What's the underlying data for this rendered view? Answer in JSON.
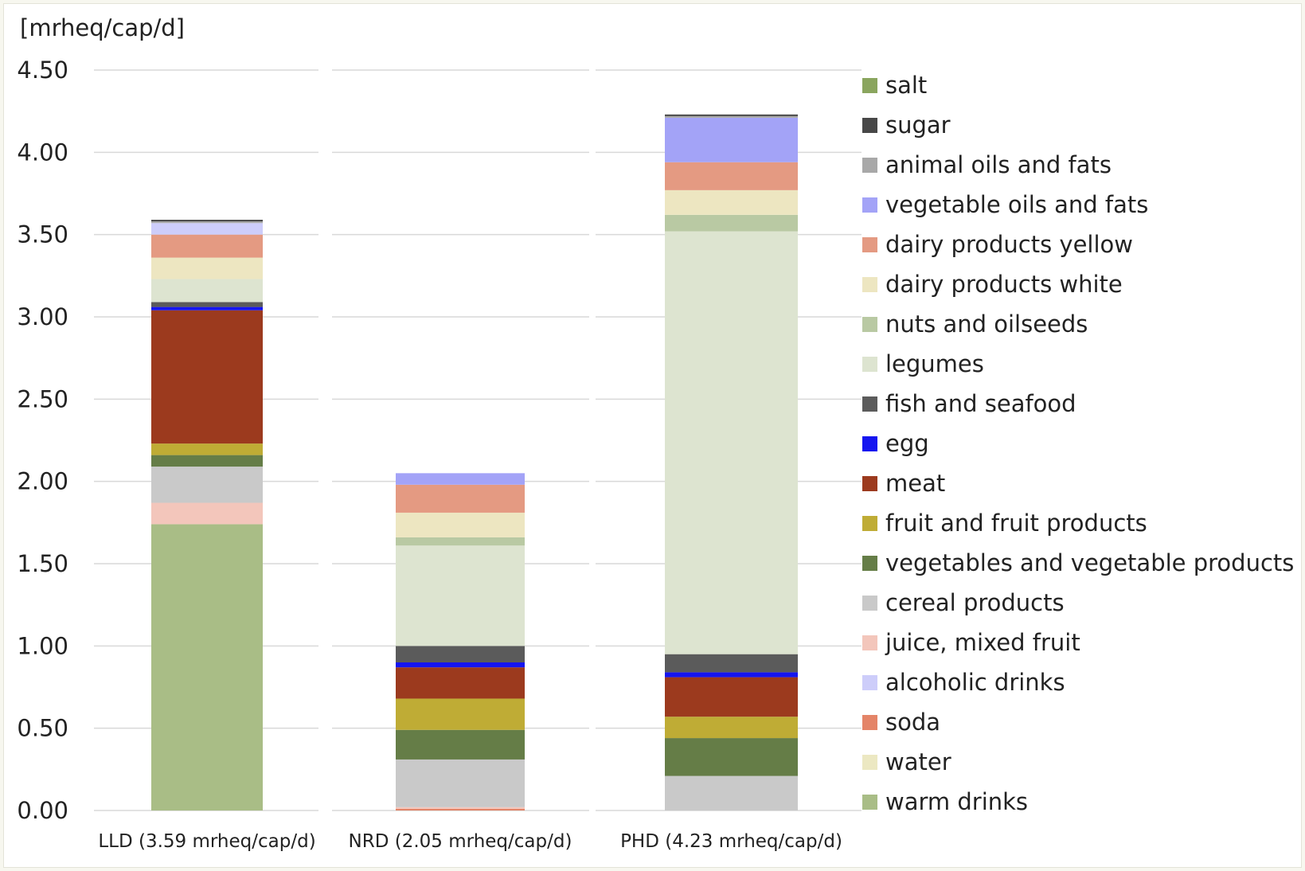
{
  "chart_data": {
    "type": "bar",
    "stacked": true,
    "unit_label": "[mrheq/cap/d]",
    "title": "",
    "xlabel": "",
    "ylabel": "[mrheq/cap/d]",
    "ylim": [
      0,
      4.5
    ],
    "yticks": [
      "0.00",
      "0.50",
      "1.00",
      "1.50",
      "2.00",
      "2.50",
      "3.00",
      "3.50",
      "4.00",
      "4.50"
    ],
    "grid": true,
    "legend_position": "right",
    "categories": [
      "LLD (3.59 mrheq/cap/d)",
      "NRD (2.05 mrheq/cap/d)",
      "PHD (4.23 mrheq/cap/d)"
    ],
    "series": [
      {
        "name": "warm drinks",
        "color": "#a9bd86",
        "values": [
          1.74,
          0.0,
          0.0
        ]
      },
      {
        "name": "water",
        "color": "#ece8c2",
        "values": [
          0.0,
          0.0,
          0.0
        ]
      },
      {
        "name": "soda",
        "color": "#e48468",
        "values": [
          0.0,
          0.01,
          0.0
        ]
      },
      {
        "name": "alcoholic drinks",
        "color": "#cdcdfa",
        "values": [
          0.0,
          0.0,
          0.0
        ]
      },
      {
        "name": "juice, mixed fruit",
        "color": "#f3c6bb",
        "values": [
          0.13,
          0.01,
          0.0
        ]
      },
      {
        "name": "cereal products",
        "color": "#c9c9c9",
        "values": [
          0.22,
          0.29,
          0.21
        ]
      },
      {
        "name": "fruit and fruit products",
        "color": "#bfac35",
        "values": [
          0.0,
          0.0,
          0.0
        ]
      },
      {
        "name": "vegetables and vegetable products",
        "color": "#657d47",
        "values": [
          0.07,
          0.18,
          0.23
        ]
      },
      {
        "name": "fruit and fruit products",
        "color": "#bfac35",
        "values": [
          0.07,
          0.19,
          0.13
        ]
      },
      {
        "name": "meat",
        "color": "#9c3a1e",
        "values": [
          0.81,
          0.19,
          0.24
        ]
      },
      {
        "name": "egg",
        "color": "#1515f0",
        "values": [
          0.02,
          0.03,
          0.03
        ]
      },
      {
        "name": "fish and seafood",
        "color": "#5b5b5b",
        "values": [
          0.03,
          0.1,
          0.11
        ]
      },
      {
        "name": "legumes",
        "color": "#dde4d0",
        "values": [
          0.14,
          0.61,
          2.57
        ]
      },
      {
        "name": "nuts and oilseeds",
        "color": "#b9c9a3",
        "values": [
          0.0,
          0.05,
          0.1
        ]
      },
      {
        "name": "dairy products white",
        "color": "#ede6c1",
        "values": [
          0.13,
          0.15,
          0.15
        ]
      },
      {
        "name": "dairy products yellow",
        "color": "#e49a82",
        "values": [
          0.14,
          0.17,
          0.17
        ]
      },
      {
        "name": "vegetable oils and fats",
        "color": "#a3a3f7",
        "values": [
          0.0,
          0.07,
          0.27
        ]
      },
      {
        "name": "alcoholic drinks",
        "color": "#cdcdfa",
        "values": [
          0.07,
          0.0,
          0.0
        ]
      },
      {
        "name": "animal oils and fats",
        "color": "#a8a8a8",
        "values": [
          0.01,
          0.0,
          0.01
        ]
      },
      {
        "name": "sugar",
        "color": "#474747",
        "values": [
          0.01,
          0.0,
          0.01
        ]
      },
      {
        "name": "salt",
        "color": "#8aa55e",
        "values": [
          0.0,
          0.0,
          0.0
        ]
      }
    ],
    "legend": [
      {
        "label": "salt",
        "color": "#8aa55e",
        "icon": "salt-swatch"
      },
      {
        "label": "sugar",
        "color": "#474747",
        "icon": "sugar-swatch"
      },
      {
        "label": "animal oils and fats",
        "color": "#a8a8a8",
        "icon": "animal-oils-swatch"
      },
      {
        "label": "vegetable oils and fats",
        "color": "#a3a3f7",
        "icon": "vegetable-oils-swatch"
      },
      {
        "label": "dairy products yellow",
        "color": "#e49a82",
        "icon": "dairy-yellow-swatch"
      },
      {
        "label": "dairy products white",
        "color": "#ede6c1",
        "icon": "dairy-white-swatch"
      },
      {
        "label": "nuts and oilseeds",
        "color": "#b9c9a3",
        "icon": "nuts-swatch"
      },
      {
        "label": "legumes",
        "color": "#dde4d0",
        "icon": "legumes-swatch"
      },
      {
        "label": "fish and seafood",
        "color": "#5b5b5b",
        "icon": "fish-swatch"
      },
      {
        "label": "egg",
        "color": "#1515f0",
        "icon": "egg-swatch"
      },
      {
        "label": "meat",
        "color": "#9c3a1e",
        "icon": "meat-swatch"
      },
      {
        "label": "fruit and fruit products",
        "color": "#bfac35",
        "icon": "fruit-swatch"
      },
      {
        "label": "vegetables and vegetable products",
        "color": "#657d47",
        "icon": "vegetables-swatch"
      },
      {
        "label": "cereal products",
        "color": "#c9c9c9",
        "icon": "cereal-swatch"
      },
      {
        "label": "juice, mixed fruit",
        "color": "#f3c6bb",
        "icon": "juice-swatch"
      },
      {
        "label": "alcoholic drinks",
        "color": "#cdcdfa",
        "icon": "alcoholic-swatch"
      },
      {
        "label": "soda",
        "color": "#e48468",
        "icon": "soda-swatch"
      },
      {
        "label": "water",
        "color": "#ece8c2",
        "icon": "water-swatch"
      },
      {
        "label": "warm drinks",
        "color": "#a9bd86",
        "icon": "warm-drinks-swatch"
      }
    ]
  }
}
